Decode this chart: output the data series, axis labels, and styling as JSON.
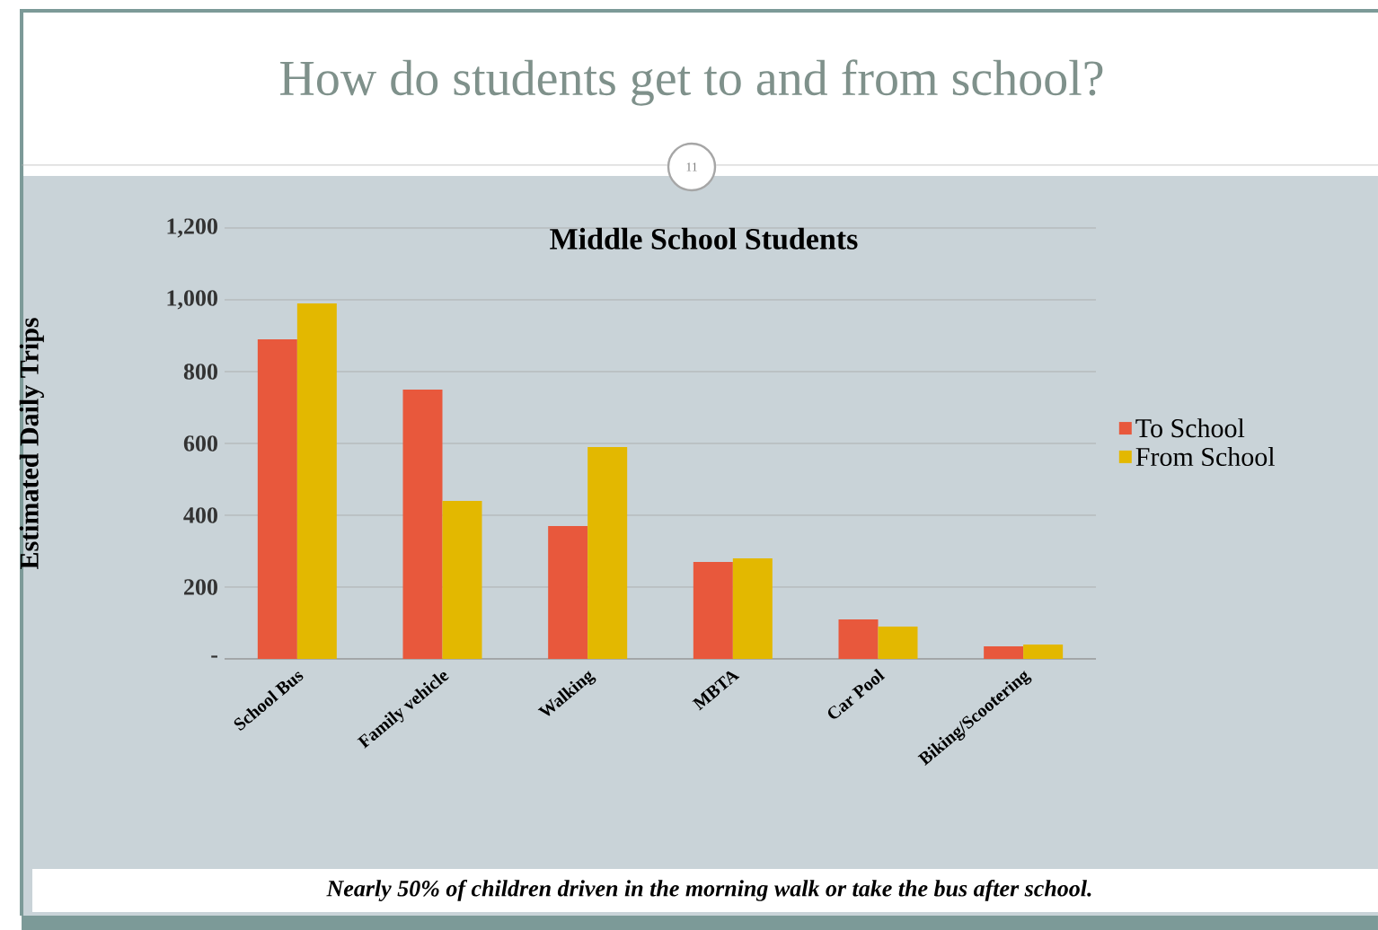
{
  "chart_data": {
    "type": "bar",
    "title": "How do students get to and from school?",
    "subtitle": "Middle School Students",
    "ylabel": "Estimated Daily Trips",
    "annotations": [
      "11",
      "Nearly 50% of children driven in the morning walk or take the bus after school."
    ],
    "categories": [
      "School Bus",
      "Family vehicle",
      "Walking",
      "MBTA",
      "Car Pool",
      "Biking/Scootering"
    ],
    "series": [
      {
        "name": "To School",
        "color": "#e8583c",
        "values": [
          890,
          750,
          370,
          270,
          110,
          35
        ]
      },
      {
        "name": "From School",
        "color": "#e3b800",
        "values": [
          990,
          440,
          590,
          280,
          90,
          40
        ]
      }
    ],
    "ylim": [
      0,
      1200
    ],
    "yticks": [
      {
        "value": 0,
        "label": "-"
      },
      {
        "value": 200,
        "label": "200"
      },
      {
        "value": 400,
        "label": "400"
      },
      {
        "value": 600,
        "label": "600"
      },
      {
        "value": 800,
        "label": "800"
      },
      {
        "value": 1000,
        "label": "1,000"
      },
      {
        "value": 1200,
        "label": "1,200"
      }
    ],
    "grid": "y",
    "legend": "right"
  }
}
